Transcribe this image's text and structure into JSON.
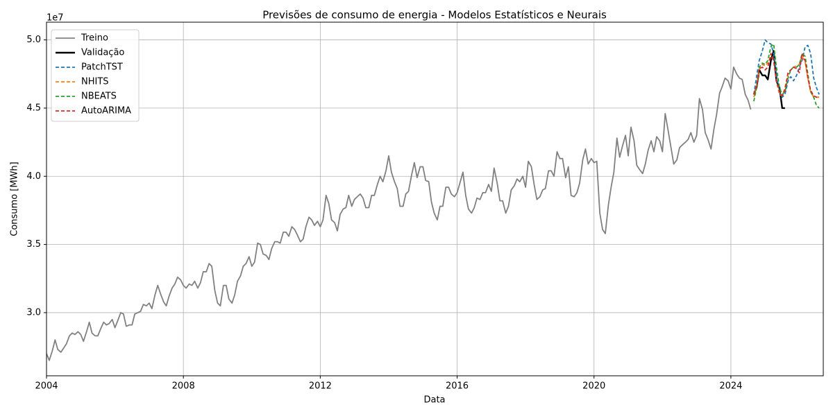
{
  "chart_data": {
    "type": "line",
    "title": "Previsões de consumo de energia - Modelos Estatísticos e Neurais",
    "x_label": "Data",
    "y_label": "Consumo [MWh]",
    "y_offset_label": "1e7",
    "xlim": [
      2004,
      2026.7
    ],
    "ylim": [
      2.537,
      5.13
    ],
    "xticks": [
      2004,
      2008,
      2012,
      2016,
      2020,
      2024
    ],
    "yticks": [
      {
        "value": 3,
        "label": "3.0"
      },
      3.5,
      {
        "value": 4,
        "label": "4.0"
      },
      4.5,
      {
        "value": 5,
        "label": "5.0"
      }
    ],
    "grid": true,
    "legend": "upper left",
    "series": [
      {
        "name": "Treino",
        "color": "#808080",
        "linestyle": "solid",
        "linewidth": 1.8,
        "x": [
          2004,
          2004.08,
          2004.17,
          2004.25,
          2004.33,
          2004.42,
          2004.5,
          2004.58,
          2004.67,
          2004.75,
          2004.83,
          2004.92,
          2005,
          2005.08,
          2005.17,
          2005.25,
          2005.33,
          2005.42,
          2005.5,
          2005.58,
          2005.67,
          2005.75,
          2005.83,
          2005.92,
          2006,
          2006.08,
          2006.17,
          2006.25,
          2006.33,
          2006.42,
          2006.5,
          2006.58,
          2006.67,
          2006.75,
          2006.83,
          2006.92,
          2007,
          2007.08,
          2007.17,
          2007.25,
          2007.33,
          2007.42,
          2007.5,
          2007.58,
          2007.67,
          2007.75,
          2007.83,
          2007.92,
          2008,
          2008.08,
          2008.17,
          2008.25,
          2008.33,
          2008.42,
          2008.5,
          2008.58,
          2008.67,
          2008.75,
          2008.83,
          2008.92,
          2009,
          2009.08,
          2009.17,
          2009.25,
          2009.33,
          2009.42,
          2009.5,
          2009.58,
          2009.67,
          2009.75,
          2009.83,
          2009.92,
          2010,
          2010.08,
          2010.17,
          2010.25,
          2010.33,
          2010.42,
          2010.5,
          2010.58,
          2010.67,
          2010.75,
          2010.83,
          2010.92,
          2011,
          2011.08,
          2011.17,
          2011.25,
          2011.33,
          2011.42,
          2011.5,
          2011.58,
          2011.67,
          2011.75,
          2011.83,
          2011.92,
          2012,
          2012.08,
          2012.17,
          2012.25,
          2012.33,
          2012.42,
          2012.5,
          2012.58,
          2012.67,
          2012.75,
          2012.83,
          2012.92,
          2013,
          2013.08,
          2013.17,
          2013.25,
          2013.33,
          2013.42,
          2013.5,
          2013.58,
          2013.67,
          2013.75,
          2013.83,
          2013.92,
          2014,
          2014.08,
          2014.17,
          2014.25,
          2014.33,
          2014.42,
          2014.5,
          2014.58,
          2014.67,
          2014.75,
          2014.83,
          2014.92,
          2015,
          2015.08,
          2015.17,
          2015.25,
          2015.33,
          2015.42,
          2015.5,
          2015.58,
          2015.67,
          2015.75,
          2015.83,
          2015.92,
          2016,
          2016.08,
          2016.17,
          2016.25,
          2016.33,
          2016.42,
          2016.5,
          2016.58,
          2016.67,
          2016.75,
          2016.83,
          2016.92,
          2017,
          2017.08,
          2017.17,
          2017.25,
          2017.33,
          2017.42,
          2017.5,
          2017.58,
          2017.67,
          2017.75,
          2017.83,
          2017.92,
          2018,
          2018.08,
          2018.17,
          2018.25,
          2018.33,
          2018.42,
          2018.5,
          2018.58,
          2018.67,
          2018.75,
          2018.83,
          2018.92,
          2019,
          2019.08,
          2019.17,
          2019.25,
          2019.33,
          2019.42,
          2019.5,
          2019.58,
          2019.67,
          2019.75,
          2019.83,
          2019.92,
          2020,
          2020.08,
          2020.17,
          2020.25,
          2020.33,
          2020.42,
          2020.5,
          2020.58,
          2020.67,
          2020.75,
          2020.83,
          2020.92,
          2021,
          2021.08,
          2021.17,
          2021.25,
          2021.33,
          2021.42,
          2021.5,
          2021.58,
          2021.67,
          2021.75,
          2021.83,
          2021.92,
          2022,
          2022.08,
          2022.17,
          2022.25,
          2022.33,
          2022.42,
          2022.5,
          2022.58,
          2022.67,
          2022.75,
          2022.83,
          2022.92,
          2023,
          2023.08,
          2023.17,
          2023.25,
          2023.33,
          2023.42,
          2023.5,
          2023.58,
          2023.67,
          2023.75,
          2023.83,
          2023.92,
          2024,
          2024.08,
          2024.17,
          2024.25,
          2024.33,
          2024.42,
          2024.5,
          2024.58
        ],
        "values": [
          2.7,
          2.65,
          2.72,
          2.8,
          2.73,
          2.71,
          2.74,
          2.77,
          2.83,
          2.85,
          2.84,
          2.86,
          2.84,
          2.79,
          2.86,
          2.93,
          2.85,
          2.83,
          2.83,
          2.88,
          2.93,
          2.91,
          2.92,
          2.95,
          2.89,
          2.94,
          3.0,
          2.99,
          2.9,
          2.91,
          2.91,
          2.99,
          3.0,
          3.01,
          3.06,
          3.05,
          3.07,
          3.03,
          3.13,
          3.2,
          3.14,
          3.08,
          3.05,
          3.12,
          3.18,
          3.21,
          3.26,
          3.24,
          3.2,
          3.18,
          3.21,
          3.2,
          3.23,
          3.18,
          3.22,
          3.3,
          3.3,
          3.36,
          3.34,
          3.16,
          3.07,
          3.05,
          3.2,
          3.2,
          3.1,
          3.07,
          3.13,
          3.23,
          3.27,
          3.34,
          3.36,
          3.41,
          3.34,
          3.37,
          3.51,
          3.5,
          3.43,
          3.42,
          3.39,
          3.47,
          3.52,
          3.52,
          3.51,
          3.59,
          3.59,
          3.56,
          3.63,
          3.61,
          3.57,
          3.52,
          3.54,
          3.63,
          3.7,
          3.68,
          3.64,
          3.67,
          3.63,
          3.68,
          3.86,
          3.8,
          3.68,
          3.66,
          3.6,
          3.72,
          3.76,
          3.77,
          3.86,
          3.78,
          3.83,
          3.85,
          3.87,
          3.84,
          3.77,
          3.77,
          3.86,
          3.86,
          3.94,
          4.0,
          3.96,
          4.04,
          4.15,
          4.03,
          3.96,
          3.91,
          3.78,
          3.78,
          3.87,
          3.89,
          4.01,
          4.1,
          3.99,
          4.07,
          4.07,
          3.97,
          3.96,
          3.81,
          3.73,
          3.68,
          3.78,
          3.78,
          3.92,
          3.92,
          3.87,
          3.85,
          3.88,
          3.95,
          4.03,
          3.86,
          3.76,
          3.73,
          3.77,
          3.84,
          3.83,
          3.88,
          3.88,
          3.94,
          3.89,
          4.06,
          3.95,
          3.82,
          3.82,
          3.73,
          3.78,
          3.9,
          3.93,
          3.98,
          3.96,
          4.0,
          3.92,
          4.11,
          4.07,
          3.94,
          3.83,
          3.85,
          3.9,
          3.91,
          4.04,
          4.04,
          4.0,
          4.18,
          4.13,
          4.13,
          3.99,
          4.07,
          3.86,
          3.85,
          3.88,
          3.95,
          4.12,
          4.2,
          4.09,
          4.13,
          4.1,
          4.11,
          3.73,
          3.61,
          3.58,
          3.79,
          3.92,
          4.03,
          4.28,
          4.14,
          4.22,
          4.3,
          4.15,
          4.36,
          4.26,
          4.08,
          4.05,
          4.02,
          4.09,
          4.19,
          4.26,
          4.18,
          4.29,
          4.26,
          4.18,
          4.46,
          4.33,
          4.21,
          4.09,
          4.12,
          4.21,
          4.23,
          4.25,
          4.27,
          4.32,
          4.25,
          4.3,
          4.57,
          4.49,
          4.32,
          4.27,
          4.2,
          4.34,
          4.45,
          4.61,
          4.66,
          4.72,
          4.7,
          4.64,
          4.8,
          4.75,
          4.72,
          4.71,
          4.6,
          4.56,
          4.49
        ]
      },
      {
        "name": "Validação",
        "color": "#000000",
        "linestyle": "solid",
        "linewidth": 2.4,
        "x": [
          2024.67,
          2024.75,
          2024.83,
          2024.92,
          2025,
          2025.08,
          2025.17,
          2025.25,
          2025.33,
          2025.42,
          2025.5,
          2025.58
        ],
        "values": [
          4.6,
          4.65,
          4.78,
          4.74,
          4.74,
          4.71,
          4.85,
          4.92,
          4.7,
          4.65,
          4.5,
          4.5
        ]
      },
      {
        "name": "PatchTST",
        "color": "#1f77b4",
        "linestyle": "dashed",
        "linewidth": 1.8,
        "x": [
          2024.67,
          2024.75,
          2024.83,
          2024.92,
          2025,
          2025.08,
          2025.17,
          2025.25,
          2025.33,
          2025.42,
          2025.5,
          2025.58,
          2025.67,
          2025.75,
          2025.83,
          2025.92,
          2026,
          2026.08,
          2026.17,
          2026.25,
          2026.33,
          2026.42,
          2026.5,
          2026.58
        ],
        "values": [
          4.6,
          4.73,
          4.85,
          4.92,
          5.0,
          4.98,
          4.97,
          4.9,
          4.75,
          4.62,
          4.58,
          4.6,
          4.7,
          4.73,
          4.7,
          4.74,
          4.8,
          4.85,
          4.95,
          4.96,
          4.9,
          4.72,
          4.65,
          4.6
        ]
      },
      {
        "name": "NHITS",
        "color": "#ff7f0e",
        "linestyle": "dashed",
        "linewidth": 1.8,
        "x": [
          2024.67,
          2024.75,
          2024.83,
          2024.92,
          2025,
          2025.08,
          2025.17,
          2025.25,
          2025.33,
          2025.42,
          2025.5,
          2025.58,
          2025.67,
          2025.75,
          2025.83,
          2025.92,
          2026,
          2026.08,
          2026.17,
          2026.25,
          2026.33,
          2026.42,
          2026.5,
          2026.58
        ],
        "values": [
          4.58,
          4.66,
          4.78,
          4.82,
          4.81,
          4.83,
          4.88,
          4.85,
          4.7,
          4.6,
          4.59,
          4.65,
          4.75,
          4.78,
          4.8,
          4.81,
          4.82,
          4.88,
          4.84,
          4.72,
          4.62,
          4.58,
          4.58,
          4.58
        ]
      },
      {
        "name": "NBEATS",
        "color": "#2ca02c",
        "linestyle": "dashed",
        "linewidth": 1.8,
        "x": [
          2024.67,
          2024.75,
          2024.83,
          2024.92,
          2025,
          2025.08,
          2025.17,
          2025.25,
          2025.33,
          2025.42,
          2025.5,
          2025.58,
          2025.67,
          2025.75,
          2025.83,
          2025.92,
          2026,
          2026.08,
          2026.17,
          2026.25,
          2026.33,
          2026.42,
          2026.5,
          2026.58
        ],
        "values": [
          4.55,
          4.65,
          4.8,
          4.83,
          4.82,
          4.85,
          4.95,
          4.97,
          4.8,
          4.65,
          4.6,
          4.62,
          4.72,
          4.78,
          4.8,
          4.8,
          4.82,
          4.9,
          4.88,
          4.75,
          4.62,
          4.58,
          4.52,
          4.5
        ]
      },
      {
        "name": "AutoARIMA",
        "color": "#d62728",
        "linestyle": "dashed",
        "linewidth": 1.8,
        "x": [
          2024.67,
          2024.75,
          2024.83,
          2024.92,
          2025,
          2025.08,
          2025.17,
          2025.25,
          2025.33,
          2025.42,
          2025.5,
          2025.58,
          2025.67,
          2025.75,
          2025.83,
          2025.92,
          2026,
          2026.08,
          2026.17,
          2026.25,
          2026.33,
          2026.42,
          2026.5,
          2026.58
        ],
        "values": [
          4.6,
          4.66,
          4.79,
          4.8,
          4.78,
          4.8,
          4.9,
          4.85,
          4.7,
          4.62,
          4.59,
          4.63,
          4.76,
          4.78,
          4.8,
          4.79,
          4.76,
          4.9,
          4.85,
          4.72,
          4.63,
          4.59,
          4.58,
          4.58
        ]
      }
    ]
  }
}
